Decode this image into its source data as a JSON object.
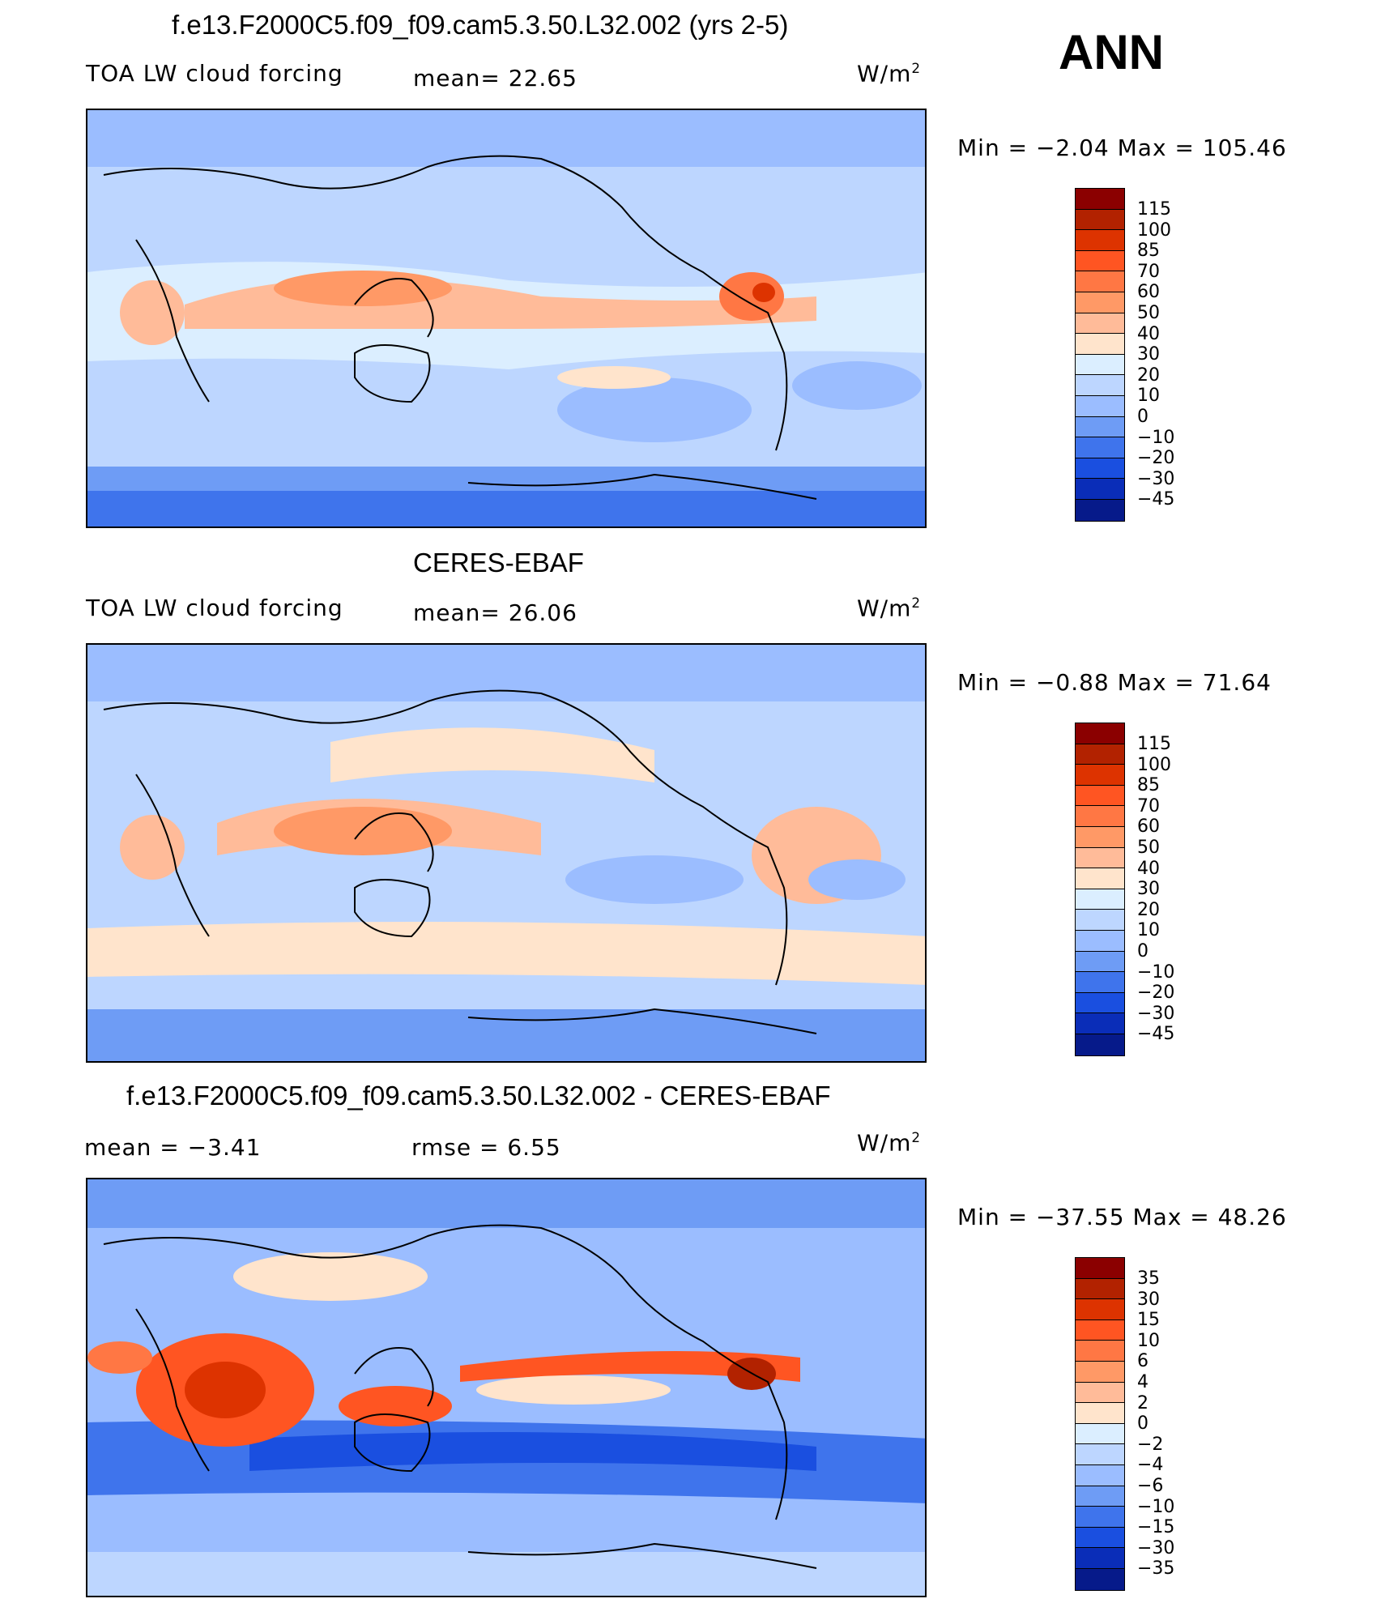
{
  "season": "ANN",
  "units_base": "W/m",
  "units_exp": "2",
  "panels": [
    {
      "title": "f.e13.F2000C5.f09_f09.cam5.3.50.L32.002 (yrs 2-5)",
      "left_label": "TOA LW cloud forcing",
      "mid_label": "mean=  22.65",
      "minmax": "Min =  −2.04 Max = 105.46",
      "levels": [
        "115",
        "100",
        "85",
        "70",
        "60",
        "50",
        "40",
        "30",
        "20",
        "10",
        "0",
        "−10",
        "−20",
        "−30",
        "−45"
      ]
    },
    {
      "title": "CERES-EBAF",
      "left_label": "TOA LW cloud forcing",
      "mid_label": "mean=  26.06",
      "minmax": "Min =  −0.88 Max =  71.64",
      "levels": [
        "115",
        "100",
        "85",
        "70",
        "60",
        "50",
        "40",
        "30",
        "20",
        "10",
        "0",
        "−10",
        "−20",
        "−30",
        "−45"
      ]
    },
    {
      "title": "f.e13.F2000C5.f09_f09.cam5.3.50.L32.002 - CERES-EBAF",
      "left_label": "mean =  −3.41",
      "mid_label": "rmse =   6.55",
      "minmax": "Min = −37.55 Max =  48.26",
      "levels": [
        "35",
        "30",
        "15",
        "10",
        "6",
        "4",
        "2",
        "0",
        "−2",
        "−4",
        "−6",
        "−10",
        "−15",
        "−30",
        "−35"
      ]
    }
  ],
  "colorbar_colors": [
    "#8b0000",
    "#b22200",
    "#dd3300",
    "#ff5522",
    "#ff7744",
    "#ff9966",
    "#ffbb99",
    "#ffe4cc",
    "#dbeeff",
    "#bdd6ff",
    "#9bbdff",
    "#6e9cf5",
    "#3f74ec",
    "#1a4fe0",
    "#0a2db8",
    "#061a8a"
  ]
}
